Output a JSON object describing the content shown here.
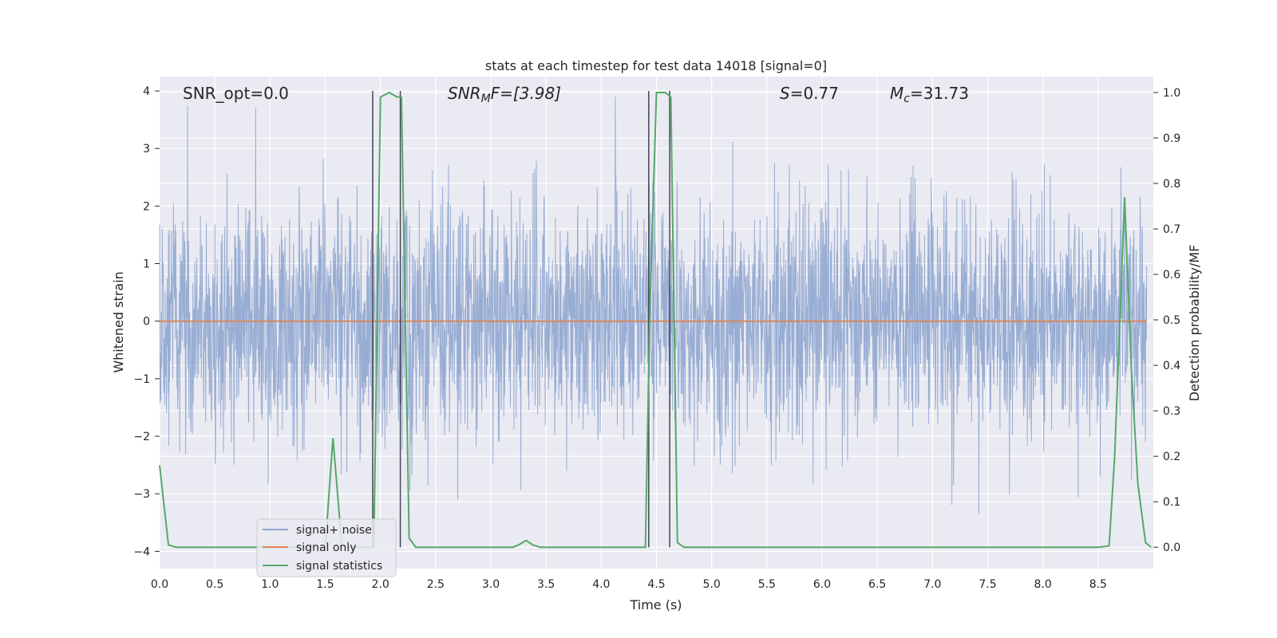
{
  "chart_data": {
    "type": "line",
    "title": "stats at each timestep for test data 14018 [signal=0]",
    "xlabel": "Time (s)",
    "ylabel": "Whitened strain",
    "ylabel_right": "Detection probability/MF",
    "xlim": [
      0.0,
      9.0
    ],
    "ylim": [
      -4.3,
      4.25
    ],
    "ylim_right": [
      -0.047,
      1.035
    ],
    "xticks": [
      "0.0",
      "0.5",
      "1.0",
      "1.5",
      "2.0",
      "2.5",
      "3.0",
      "3.5",
      "4.0",
      "4.5",
      "5.0",
      "5.5",
      "6.0",
      "6.5",
      "7.0",
      "7.5",
      "8.0",
      "8.5"
    ],
    "xtick_values": [
      0.0,
      0.5,
      1.0,
      1.5,
      2.0,
      2.5,
      3.0,
      3.5,
      4.0,
      4.5,
      5.0,
      5.5,
      6.0,
      6.5,
      7.0,
      7.5,
      8.0,
      8.5
    ],
    "yticks": [
      "4",
      "3",
      "2",
      "1",
      "0",
      "−1",
      "−2",
      "−3",
      "−4"
    ],
    "ytick_values": [
      4,
      3,
      2,
      1,
      0,
      -1,
      -2,
      -3,
      -4
    ],
    "yticks_right": [
      "1.0",
      "0.9",
      "0.8",
      "0.7",
      "0.6",
      "0.5",
      "0.4",
      "0.3",
      "0.2",
      "0.1",
      "0.0"
    ],
    "ytick_right_values": [
      1.0,
      0.9,
      0.8,
      0.7,
      0.6,
      0.5,
      0.4,
      0.3,
      0.2,
      0.1,
      0.0
    ],
    "grid": true,
    "legend_position": "lower-left",
    "annotations": {
      "snr_opt": "SNR_opt=0.0",
      "snr_mf_main": "SNR",
      "snr_mf_sub": "M",
      "snr_mf_rest": "F=[3.98]",
      "s_main": "S",
      "s_rest": "=0.77",
      "mc_main": "M",
      "mc_sub": "c",
      "mc_rest": "=31.73"
    },
    "series": [
      {
        "name": "signal+ noise",
        "color": "#8fa6cf",
        "description_values": "whitened noise, amplitude mostly within ±2.5, peaks up to ~3.5"
      },
      {
        "name": "signal only",
        "color": "#dd8452",
        "y_constant": 0.0
      },
      {
        "name": "signal statistics",
        "color": "#55a868",
        "axis": "right",
        "x": [
          0.0,
          0.08,
          0.15,
          0.5,
          1.0,
          1.5,
          1.57,
          1.65,
          1.7,
          1.9,
          1.94,
          2.0,
          2.08,
          2.15,
          2.19,
          2.26,
          2.32,
          2.5,
          3.0,
          3.2,
          3.25,
          3.32,
          3.38,
          3.45,
          3.5,
          4.0,
          4.4,
          4.44,
          4.5,
          4.58,
          4.63,
          4.69,
          4.75,
          5.0,
          6.0,
          7.0,
          8.0,
          8.5,
          8.6,
          8.65,
          8.74,
          8.8,
          8.86,
          8.93,
          8.98
        ],
        "y": [
          0.18,
          0.005,
          0.0,
          0.0,
          0.0,
          0.0,
          0.24,
          0.005,
          0.0,
          0.0,
          0.0,
          0.99,
          1.0,
          0.99,
          0.99,
          0.02,
          0.0,
          0.0,
          0.0,
          0.0,
          0.005,
          0.015,
          0.005,
          0.0,
          0.0,
          0.0,
          0.0,
          0.52,
          1.0,
          1.0,
          0.99,
          0.01,
          0.0,
          0.0,
          0.0,
          0.0,
          0.0,
          0.0,
          0.003,
          0.2,
          0.77,
          0.4,
          0.14,
          0.01,
          0.0
        ]
      }
    ],
    "vlines": [
      1.93,
      2.18,
      4.43,
      4.62
    ]
  }
}
